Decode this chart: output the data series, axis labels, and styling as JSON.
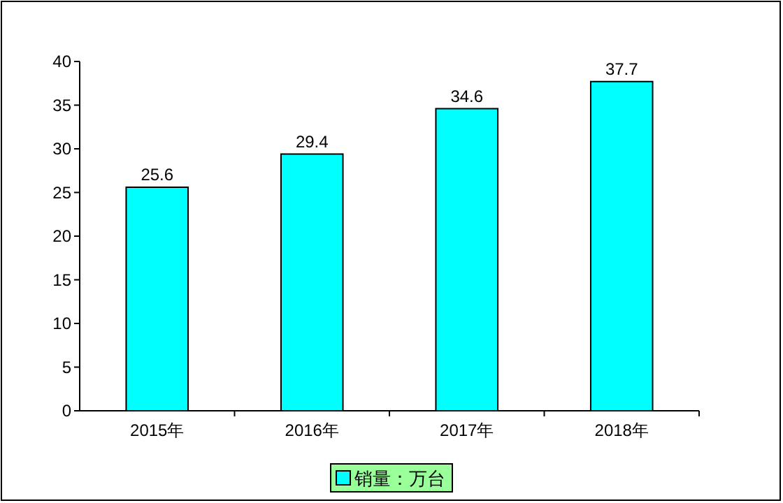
{
  "chart_data": {
    "type": "bar",
    "categories": [
      "2015年",
      "2016年",
      "2017年",
      "2018年"
    ],
    "series": [
      {
        "name": "销量：万台",
        "color": "#00ffff",
        "values": [
          25.6,
          29.4,
          34.6,
          37.7
        ]
      }
    ],
    "ylim": [
      0,
      40
    ],
    "yticks": [
      0,
      5,
      10,
      15,
      20,
      25,
      30,
      35,
      40
    ],
    "data_labels": true,
    "legend": "bottom",
    "grid": false
  }
}
